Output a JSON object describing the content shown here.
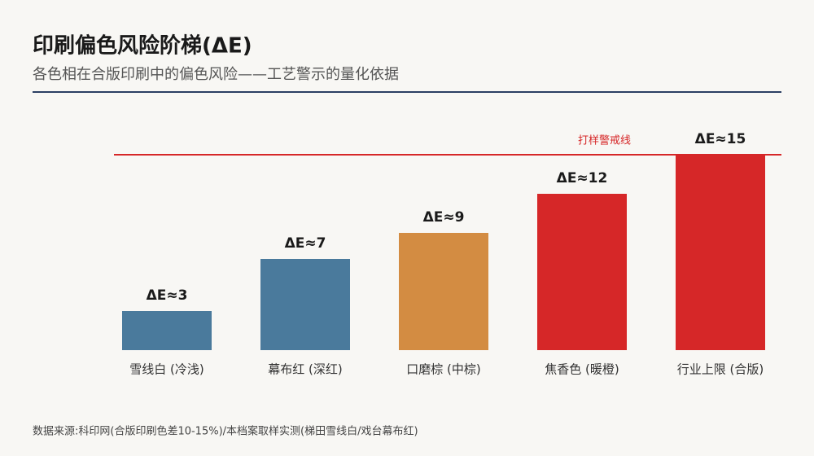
{
  "chart_data": {
    "type": "bar",
    "title": "印刷偏色风险阶梯(ΔE)",
    "subtitle": "各色相在合版印刷中的偏色风险——工艺警示的量化依据",
    "categories": [
      "雪线白 (冷浅)",
      "幕布红 (深红)",
      "口磨棕 (中棕)",
      "焦香色 (暖橙)",
      "行业上限 (合版)"
    ],
    "values": [
      3,
      7,
      9,
      12,
      15
    ],
    "value_labels": [
      "ΔE≈3",
      "ΔE≈7",
      "ΔE≈9",
      "ΔE≈12",
      "ΔE≈15"
    ],
    "colors": [
      "#4a7a9c",
      "#4a7a9c",
      "#d38c42",
      "#d62728",
      "#d62728"
    ],
    "ylim": [
      0,
      15
    ],
    "reference_line": {
      "value": 15,
      "label": "打样警戒线",
      "color": "#d62728"
    },
    "source": "数据来源:科印网(合版印刷色差10-15%)/本档案取样实测(梯田雪线白/戏台幕布红)"
  }
}
